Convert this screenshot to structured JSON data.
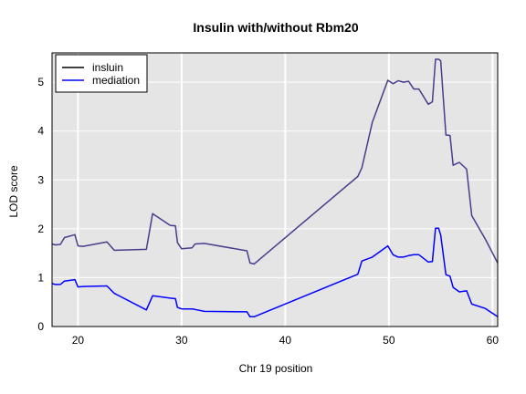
{
  "chart_data": {
    "type": "line",
    "title": "Insulin with/without Rbm20",
    "xlabel": "Chr 19 position",
    "ylabel": "LOD score",
    "xlim": [
      17.5,
      60.5
    ],
    "ylim": [
      0,
      5.6
    ],
    "xticks": [
      20,
      30,
      40,
      50,
      60
    ],
    "yticks": [
      0,
      1,
      2,
      3,
      4,
      5
    ],
    "grid": true,
    "background": "#e5e5e5",
    "legend_position": "top-left",
    "series": [
      {
        "name": "insluin",
        "legend_color": "#000000",
        "color": "#483D8B",
        "x": [
          17.5,
          17.8,
          18.3,
          18.7,
          19.7,
          20.0,
          20.5,
          22.8,
          23.5,
          26.6,
          27.2,
          28.9,
          29.4,
          29.6,
          30.0,
          31.0,
          31.3,
          32.2,
          36.3,
          36.6,
          37.0,
          47.0,
          47.4,
          48.4,
          49.9,
          50.4,
          50.9,
          51.4,
          51.9,
          52.4,
          52.9,
          53.8,
          54.2,
          54.5,
          54.8,
          55.0,
          55.5,
          55.9,
          56.2,
          56.8,
          57.5,
          58.0,
          59.3,
          60.5
        ],
        "y": [
          1.69,
          1.67,
          1.68,
          1.82,
          1.88,
          1.65,
          1.64,
          1.73,
          1.56,
          1.58,
          2.31,
          2.07,
          2.06,
          1.72,
          1.59,
          1.61,
          1.69,
          1.7,
          1.55,
          1.3,
          1.28,
          3.07,
          3.25,
          4.18,
          5.04,
          4.97,
          5.03,
          5.0,
          5.02,
          4.86,
          4.86,
          4.55,
          4.6,
          5.47,
          5.47,
          5.44,
          3.92,
          3.91,
          3.3,
          3.36,
          3.22,
          2.27,
          1.79,
          1.3
        ]
      },
      {
        "name": "mediation",
        "legend_color": "#0000ff",
        "color": "#0000ff",
        "x": [
          17.5,
          17.8,
          18.3,
          18.7,
          19.7,
          20.0,
          20.5,
          22.8,
          23.5,
          26.6,
          27.2,
          28.9,
          29.4,
          29.6,
          30.0,
          31.0,
          31.3,
          32.2,
          36.3,
          36.6,
          37.0,
          47.0,
          47.4,
          48.4,
          49.9,
          50.4,
          50.9,
          51.4,
          51.9,
          52.4,
          52.9,
          53.8,
          54.2,
          54.5,
          54.8,
          55.0,
          55.5,
          55.9,
          56.2,
          56.8,
          57.5,
          58.0,
          59.3,
          60.5
        ],
        "y": [
          0.88,
          0.86,
          0.86,
          0.93,
          0.96,
          0.81,
          0.82,
          0.83,
          0.68,
          0.34,
          0.63,
          0.58,
          0.57,
          0.39,
          0.36,
          0.36,
          0.35,
          0.31,
          0.3,
          0.2,
          0.2,
          1.07,
          1.34,
          1.42,
          1.65,
          1.47,
          1.42,
          1.42,
          1.45,
          1.47,
          1.47,
          1.32,
          1.33,
          2.01,
          2.01,
          1.87,
          1.06,
          1.03,
          0.8,
          0.71,
          0.73,
          0.46,
          0.37,
          0.2
        ]
      }
    ]
  }
}
